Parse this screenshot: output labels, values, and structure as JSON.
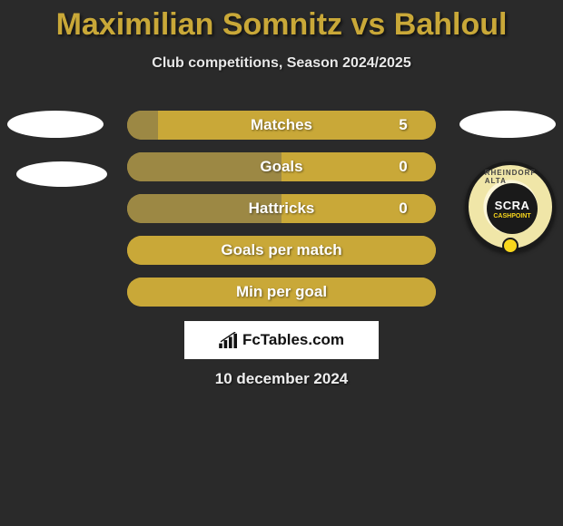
{
  "title_color": "#c9a838",
  "title": "Maximilian Somnitz vs Bahloul",
  "subtitle": "Club competitions, Season 2024/2025",
  "player_left": {
    "ellipse_color": "#ffffff"
  },
  "player_right": {
    "ellipse_color": "#ffffff",
    "badge": {
      "text1": "SCRA",
      "text2": "CASHPOINT",
      "arc_top": "RHEINDORF ALTA",
      "arc_bot": "",
      "outer_bg": "#f5eec4",
      "inner_bg": "#1a1a1a",
      "ball_color": "#f9d71c"
    }
  },
  "bars": [
    {
      "label": "Matches",
      "value_left": null,
      "value_right": "5",
      "left_width_pct": 10,
      "right_width_pct": 90,
      "left_color": "#9c8844",
      "right_color": "#c9a838",
      "bg": "#c9a838",
      "value_right_pos_pct": 88
    },
    {
      "label": "Goals",
      "value_left": null,
      "value_right": "0",
      "left_width_pct": 50,
      "right_width_pct": 50,
      "left_color": "#9c8844",
      "right_color": "#c9a838",
      "bg": "#c9a838",
      "value_right_pos_pct": 88
    },
    {
      "label": "Hattricks",
      "value_left": null,
      "value_right": "0",
      "left_width_pct": 50,
      "right_width_pct": 50,
      "left_color": "#9c8844",
      "right_color": "#c9a838",
      "bg": "#c9a838",
      "value_right_pos_pct": 88
    },
    {
      "label": "Goals per match",
      "value_left": null,
      "value_right": null,
      "left_width_pct": 100,
      "right_width_pct": 0,
      "left_color": "#c9a838",
      "right_color": "#c9a838",
      "bg": "#c9a838",
      "full": true
    },
    {
      "label": "Min per goal",
      "value_left": null,
      "value_right": null,
      "left_width_pct": 100,
      "right_width_pct": 0,
      "left_color": "#c9a838",
      "right_color": "#c9a838",
      "bg": "#c9a838",
      "full": true
    }
  ],
  "branding": {
    "text": "FcTables.com",
    "icon_color": "#111111",
    "bg": "#ffffff"
  },
  "date": "10 december 2024",
  "background_color": "#2a2a2a"
}
